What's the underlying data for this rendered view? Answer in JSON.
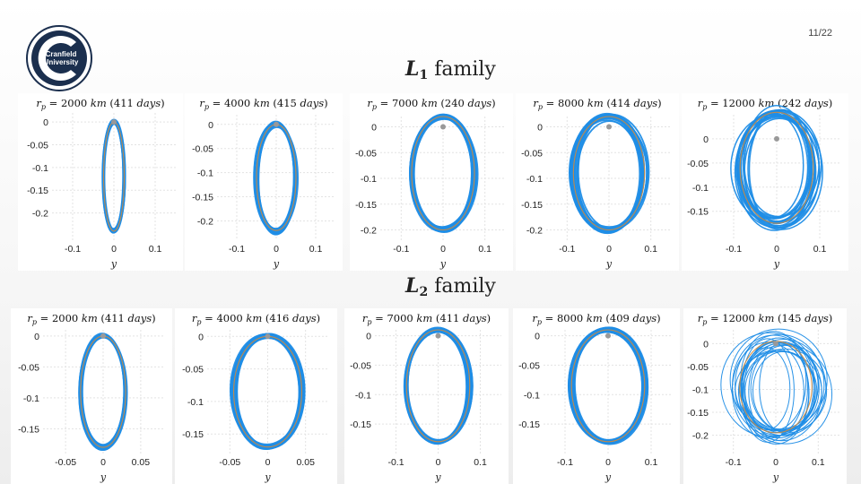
{
  "page": {
    "number": "11/22"
  },
  "logo": {
    "name": "cranfield-logo",
    "text": [
      "Cranfield",
      "University"
    ]
  },
  "colors": {
    "orbit": "#1f8de6",
    "nominal": "#d08a3c",
    "body": "#999999",
    "logo": "#1b2f4e"
  },
  "families": [
    {
      "label": "L",
      "sub": "1",
      "word": "family"
    },
    {
      "label": "L",
      "sub": "2",
      "word": "family"
    }
  ],
  "chart_data": [
    {
      "type": "line",
      "family": 1,
      "title_parts": [
        "r",
        "p",
        " = 2000 ",
        "km",
        " (411 ",
        "days",
        ")"
      ],
      "xlabel": "y",
      "xticks": [
        "-0.1",
        "0",
        "0.1"
      ],
      "yticks": [
        "0",
        "-0.05",
        "-0.1",
        "-0.15",
        "-0.2"
      ],
      "xlim": [
        -0.15,
        0.15
      ],
      "ylim": [
        -0.26,
        0.02
      ],
      "body_point": [
        0,
        0
      ],
      "orbit": {
        "cx": 0,
        "cy": -0.12,
        "rx": 0.025,
        "ry": 0.12
      },
      "spread": "low"
    },
    {
      "type": "line",
      "family": 1,
      "title_parts": [
        "r",
        "p",
        " = 4000 ",
        "km",
        " (415 ",
        "days",
        ")"
      ],
      "xlabel": "y",
      "xticks": [
        "-0.1",
        "0",
        "0.1"
      ],
      "yticks": [
        "0",
        "-0.05",
        "-0.1",
        "-0.15",
        "-0.2"
      ],
      "xlim": [
        -0.15,
        0.15
      ],
      "ylim": [
        -0.24,
        0.02
      ],
      "body_point": [
        0,
        0
      ],
      "orbit": {
        "cx": 0,
        "cy": -0.11,
        "rx": 0.05,
        "ry": 0.11
      },
      "spread": "medium"
    },
    {
      "type": "line",
      "family": 1,
      "title_parts": [
        "r",
        "p",
        " = 7000 ",
        "km",
        " (240 ",
        "days",
        ")"
      ],
      "xlabel": "y",
      "xticks": [
        "-0.1",
        "0",
        "0.1"
      ],
      "yticks": [
        "0",
        "-0.05",
        "-0.1",
        "-0.15",
        "-0.2"
      ],
      "xlim": [
        -0.15,
        0.15
      ],
      "ylim": [
        -0.22,
        0.02
      ],
      "body_point": [
        0,
        0
      ],
      "orbit": {
        "cx": 0,
        "cy": -0.09,
        "rx": 0.075,
        "ry": 0.11
      },
      "spread": "low"
    },
    {
      "type": "line",
      "family": 1,
      "title_parts": [
        "r",
        "p",
        " = 8000 ",
        "km",
        " (414 ",
        "days",
        ")"
      ],
      "xlabel": "y",
      "xticks": [
        "-0.1",
        "0",
        "0.1"
      ],
      "yticks": [
        "0",
        "-0.05",
        "-0.1",
        "-0.15",
        "-0.2"
      ],
      "xlim": [
        -0.15,
        0.15
      ],
      "ylim": [
        -0.22,
        0.02
      ],
      "body_point": [
        0,
        0
      ],
      "orbit": {
        "cx": 0,
        "cy": -0.09,
        "rx": 0.085,
        "ry": 0.11
      },
      "spread": "medium"
    },
    {
      "type": "line",
      "family": 1,
      "title_parts": [
        "r",
        "p",
        " = 12000 ",
        "km",
        " (242 ",
        "days",
        ")"
      ],
      "xlabel": "y",
      "xticks": [
        "-0.1",
        "0",
        "0.1"
      ],
      "yticks": [
        "0",
        "-0.05",
        "-0.1",
        "-0.15"
      ],
      "xlim": [
        -0.15,
        0.15
      ],
      "ylim": [
        -0.21,
        0.05
      ],
      "body_point": [
        0,
        0
      ],
      "orbit": {
        "cx": 0,
        "cy": -0.06,
        "rx": 0.085,
        "ry": 0.115
      },
      "spread": "high"
    },
    {
      "type": "line",
      "family": 2,
      "title_parts": [
        "r",
        "p",
        " = 2000 ",
        "km",
        " (411 ",
        "days",
        ")"
      ],
      "xlabel": "y",
      "xticks": [
        "-0.05",
        "0",
        "0.05"
      ],
      "yticks": [
        "0",
        "-0.05",
        "-0.1",
        "-0.15"
      ],
      "xlim": [
        -0.08,
        0.08
      ],
      "ylim": [
        -0.19,
        0.01
      ],
      "body_point": [
        0,
        0
      ],
      "orbit": {
        "cx": 0,
        "cy": -0.09,
        "rx": 0.03,
        "ry": 0.09
      },
      "spread": "low"
    },
    {
      "type": "line",
      "family": 2,
      "title_parts": [
        "r",
        "p",
        " = 4000 ",
        "km",
        " (416 ",
        "days",
        ")"
      ],
      "xlabel": "y",
      "xticks": [
        "-0.05",
        "0",
        "0.05"
      ],
      "yticks": [
        "0",
        "-0.05",
        "-0.1",
        "-0.15"
      ],
      "xlim": [
        -0.08,
        0.08
      ],
      "ylim": [
        -0.18,
        0.01
      ],
      "body_point": [
        0,
        0
      ],
      "orbit": {
        "cx": 0,
        "cy": -0.085,
        "rx": 0.045,
        "ry": 0.085
      },
      "spread": "low"
    },
    {
      "type": "line",
      "family": 2,
      "title_parts": [
        "r",
        "p",
        " = 7000 ",
        "km",
        " (411 ",
        "days",
        ")"
      ],
      "xlabel": "y",
      "xticks": [
        "-0.1",
        "0",
        "0.1"
      ],
      "yticks": [
        "0",
        "-0.05",
        "-0.1",
        "-0.15"
      ],
      "xlim": [
        -0.15,
        0.15
      ],
      "ylim": [
        -0.2,
        0.01
      ],
      "body_point": [
        0,
        0
      ],
      "orbit": {
        "cx": 0,
        "cy": -0.085,
        "rx": 0.075,
        "ry": 0.095
      },
      "spread": "low"
    },
    {
      "type": "line",
      "family": 2,
      "title_parts": [
        "r",
        "p",
        " = 8000 ",
        "km",
        " (409 ",
        "days",
        ")"
      ],
      "xlabel": "y",
      "xticks": [
        "-0.1",
        "0",
        "0.1"
      ],
      "yticks": [
        "0",
        "-0.05",
        "-0.1",
        "-0.15"
      ],
      "xlim": [
        -0.15,
        0.15
      ],
      "ylim": [
        -0.2,
        0.01
      ],
      "body_point": [
        0,
        0
      ],
      "orbit": {
        "cx": 0,
        "cy": -0.085,
        "rx": 0.085,
        "ry": 0.095
      },
      "spread": "low"
    },
    {
      "type": "line",
      "family": 2,
      "title_parts": [
        "r",
        "p",
        " = 12000 ",
        "km",
        " (145 ",
        "days",
        ")"
      ],
      "xlabel": "y",
      "xticks": [
        "-0.1",
        "0",
        "0.1"
      ],
      "yticks": [
        "0",
        "-0.05",
        "-0.1",
        "-0.15",
        "-0.2"
      ],
      "xlim": [
        -0.15,
        0.15
      ],
      "ylim": [
        -0.24,
        0.03
      ],
      "body_point": [
        0,
        0
      ],
      "orbit": {
        "cx": 0,
        "cy": -0.095,
        "rx": 0.085,
        "ry": 0.1
      },
      "spread": "chaotic"
    }
  ]
}
